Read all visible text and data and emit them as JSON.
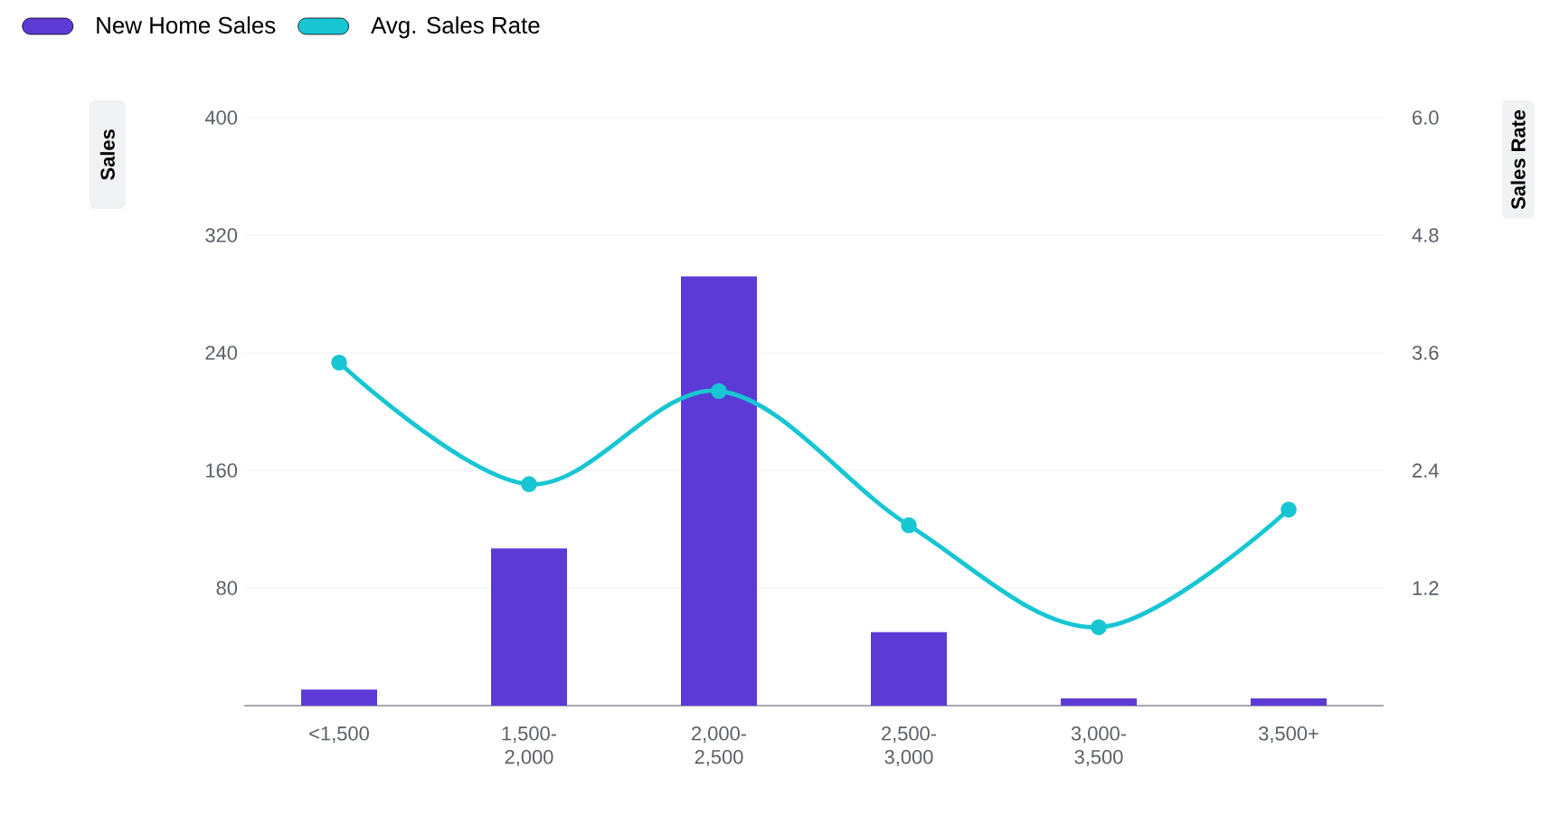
{
  "chart_data": {
    "type": "bar",
    "ylabel": "Sales",
    "y2label": "Sales Rate",
    "categories": [
      "<1,500",
      "1,500-2,000",
      "2,000-2,500",
      "2,500-3,000",
      "3,000-3,500",
      "3,500+"
    ],
    "series": [
      {
        "name": "New Home Sales",
        "color": "#5b3ad6",
        "values": [
          11,
          107,
          292,
          50,
          5,
          5
        ]
      },
      {
        "name": "Avg. Sales Rate",
        "type": "line",
        "axis": "y2",
        "color": "#18c6d3",
        "marker": "circle",
        "values": [
          3.5,
          2.26,
          3.21,
          1.84,
          0.8,
          2.0
        ]
      }
    ],
    "ylim": [
      0,
      400
    ],
    "yticks": [
      80,
      160,
      240,
      320,
      400
    ],
    "y2lim": [
      0,
      6
    ],
    "y2ticks": [
      1.2,
      2.4,
      3.6,
      4.8,
      {
        "value": 6,
        "label": "6.0"
      }
    ],
    "grid": "y",
    "legend": "top left"
  }
}
